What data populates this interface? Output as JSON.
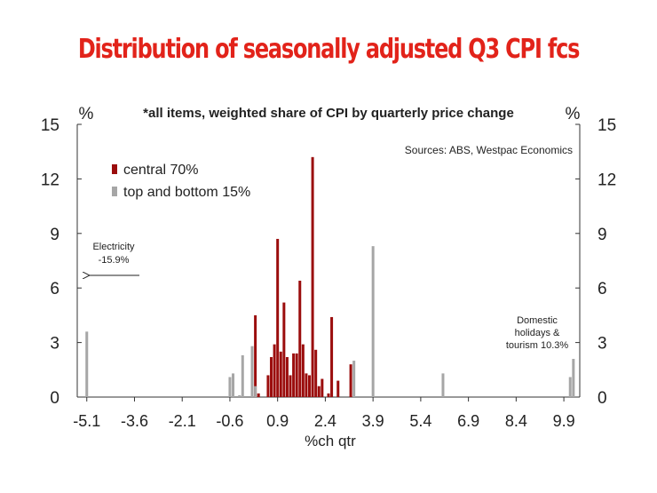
{
  "page": {
    "title": "Distribution of seasonally adjusted Q3 CPI fcs"
  },
  "chart_data": {
    "type": "bar",
    "subtitle": "*all items, weighted share of CPI by quarterly price change",
    "source": "Sources: ABS, Westpac Economics",
    "xlabel": "%ch qtr",
    "ylabel_left": "%",
    "ylabel_right": "%",
    "xlim": [
      -5.4,
      10.4
    ],
    "ylim": [
      0,
      15
    ],
    "x_ticks": [
      "-5.1",
      "-3.6",
      "-2.1",
      "-0.6",
      "0.9",
      "2.4",
      "3.9",
      "5.4",
      "6.9",
      "8.4",
      "9.9"
    ],
    "x_tick_values": [
      -5.1,
      -3.6,
      -2.1,
      -0.6,
      0.9,
      2.4,
      3.9,
      5.4,
      6.9,
      8.4,
      9.9
    ],
    "y_ticks": [
      "0",
      "3",
      "6",
      "9",
      "12",
      "15"
    ],
    "y_tick_values": [
      0,
      3,
      6,
      9,
      12,
      15
    ],
    "legend_position": "top-left",
    "grid": false,
    "series": [
      {
        "name": "central 70%",
        "color": "#9b0d0d",
        "points": [
          {
            "x": 0.2,
            "y": 4.5
          },
          {
            "x": 0.3,
            "y": 0.2
          },
          {
            "x": 0.6,
            "y": 1.2
          },
          {
            "x": 0.7,
            "y": 2.2
          },
          {
            "x": 0.8,
            "y": 2.9
          },
          {
            "x": 0.9,
            "y": 8.7
          },
          {
            "x": 1.0,
            "y": 2.5
          },
          {
            "x": 1.1,
            "y": 5.2
          },
          {
            "x": 1.2,
            "y": 2.2
          },
          {
            "x": 1.3,
            "y": 1.2
          },
          {
            "x": 1.4,
            "y": 2.4
          },
          {
            "x": 1.5,
            "y": 2.4
          },
          {
            "x": 1.6,
            "y": 6.4
          },
          {
            "x": 1.7,
            "y": 2.9
          },
          {
            "x": 1.8,
            "y": 1.3
          },
          {
            "x": 1.9,
            "y": 1.2
          },
          {
            "x": 2.0,
            "y": 13.2
          },
          {
            "x": 2.1,
            "y": 2.6
          },
          {
            "x": 2.2,
            "y": 0.6
          },
          {
            "x": 2.3,
            "y": 1.0
          },
          {
            "x": 2.5,
            "y": 0.2
          },
          {
            "x": 2.6,
            "y": 4.4
          },
          {
            "x": 2.8,
            "y": 0.9
          },
          {
            "x": 3.2,
            "y": 1.8
          }
        ]
      },
      {
        "name": "top and bottom 15%",
        "color": "#a6a6a6",
        "points": [
          {
            "x": -5.1,
            "y": 3.6
          },
          {
            "x": -0.6,
            "y": 1.1
          },
          {
            "x": -0.5,
            "y": 1.3
          },
          {
            "x": -0.3,
            "y": 0.1
          },
          {
            "x": -0.2,
            "y": 2.3
          },
          {
            "x": 0.1,
            "y": 2.8
          },
          {
            "x": 0.2,
            "y": 0.6
          },
          {
            "x": 3.3,
            "y": 2.0
          },
          {
            "x": 3.9,
            "y": 8.3
          },
          {
            "x": 6.1,
            "y": 1.3
          },
          {
            "x": 10.1,
            "y": 1.1
          },
          {
            "x": 10.2,
            "y": 2.1
          }
        ]
      }
    ],
    "annotations": [
      {
        "name": "electricity",
        "lines": [
          "Electricity",
          "-15.9%"
        ],
        "arrow": "left"
      },
      {
        "name": "domestic-holidays",
        "lines": [
          "Domestic",
          "holidays &",
          "tourism 10.3%"
        ]
      }
    ]
  }
}
